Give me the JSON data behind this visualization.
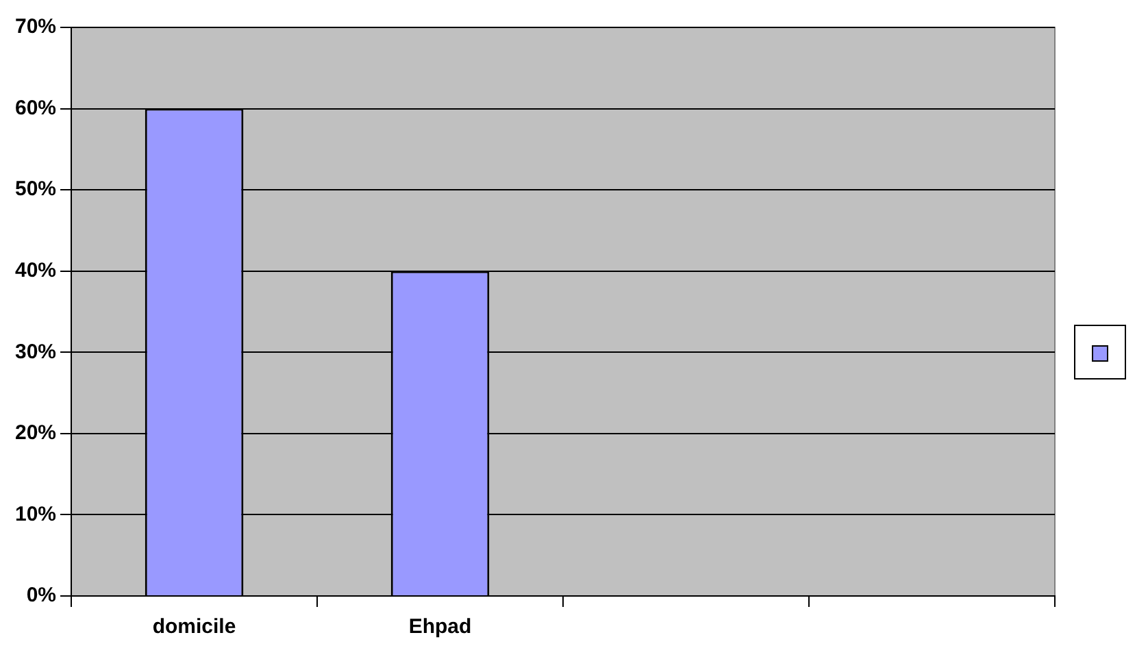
{
  "chart_data": {
    "type": "bar",
    "categories": [
      "domicile",
      "Ehpad",
      null,
      null
    ],
    "series": [
      {
        "color": "#9999ff",
        "values": [
          60,
          40,
          null,
          null
        ]
      }
    ],
    "ylim": [
      0,
      70
    ],
    "yticks": [
      {
        "value": 0,
        "label": "0%"
      },
      {
        "value": 10,
        "label": "10%"
      },
      {
        "value": 20,
        "label": "20%"
      },
      {
        "value": 30,
        "label": "30%"
      },
      {
        "value": 40,
        "label": "40%"
      },
      {
        "value": 50,
        "label": "50%"
      },
      {
        "value": 60,
        "label": "60%"
      },
      {
        "value": 70,
        "label": "70%"
      }
    ],
    "grid": "y"
  }
}
